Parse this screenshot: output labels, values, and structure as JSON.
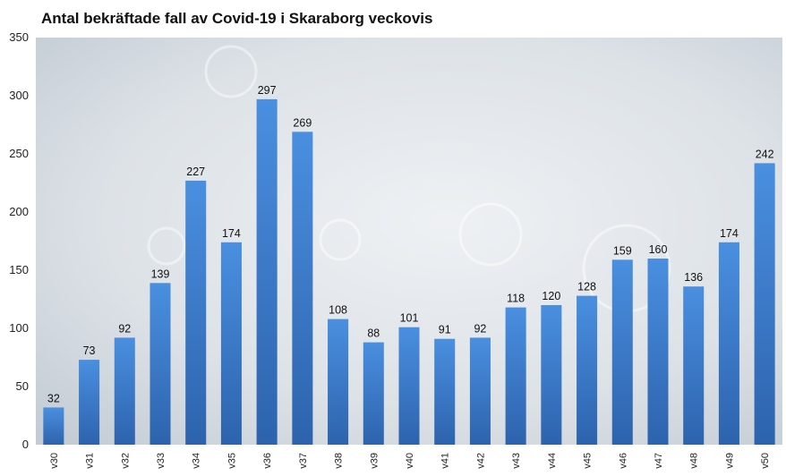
{
  "chart_data": {
    "type": "bar",
    "title": "Antal bekräftade fall av Covid-19 i Skaraborg veckovis",
    "xlabel": "",
    "ylabel": "",
    "categories": [
      "v30",
      "v31",
      "v32",
      "v33",
      "v34",
      "v35",
      "v36",
      "v37",
      "v38",
      "v39",
      "v40",
      "v41",
      "v42",
      "v43",
      "v44",
      "v45",
      "v46",
      "v47",
      "v48",
      "v49",
      "v50"
    ],
    "values": [
      32,
      73,
      92,
      139,
      227,
      174,
      297,
      269,
      108,
      88,
      101,
      91,
      92,
      118,
      120,
      128,
      159,
      160,
      136,
      174,
      242
    ],
    "ylim": [
      0,
      350
    ],
    "yticks": [
      0,
      50,
      100,
      150,
      200,
      250,
      300,
      350
    ],
    "grid": false,
    "legend": "none",
    "data_labels": true,
    "colors": {
      "bar_top": "#4a8fe0",
      "bar_bottom": "#2d63ad",
      "plot_bg_light": "#f2f5f8",
      "plot_bg_dark": "#c9d1d8"
    }
  }
}
